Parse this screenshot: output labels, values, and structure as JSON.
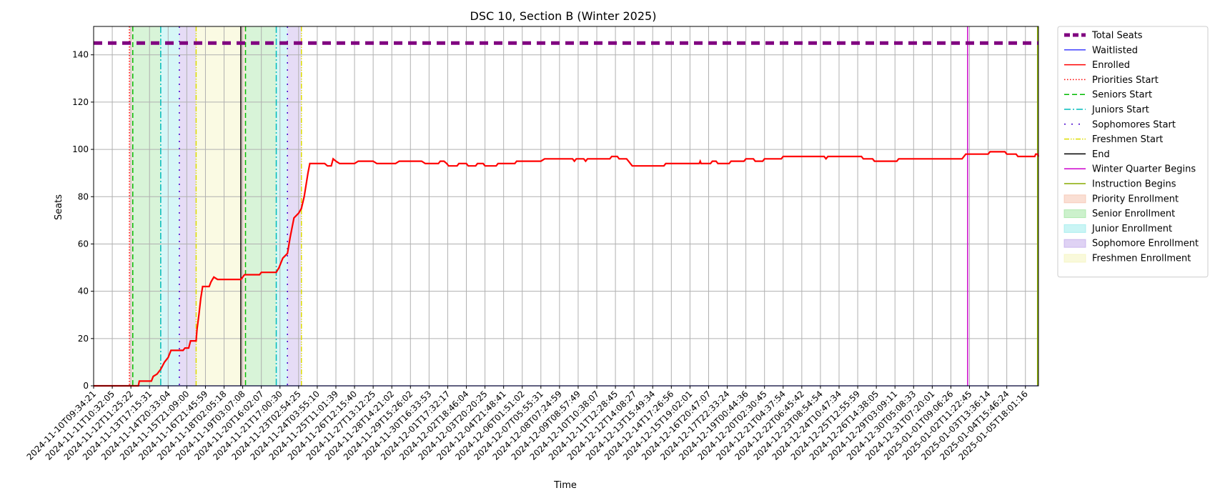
{
  "chart_data": {
    "type": "line",
    "title": "DSC 10, Section B (Winter 2025)",
    "xlabel": "Time",
    "ylabel": "Seats",
    "ylim": [
      0,
      152
    ],
    "yticks": [
      0,
      20,
      40,
      60,
      80,
      100,
      120,
      140
    ],
    "grid": true,
    "legend_position": "outside-right-top",
    "x_tick_labels": [
      "2024-11-10T09:34:21",
      "2024-11-11T10:32:05",
      "2024-11-12T11:25:22",
      "2024-11-13T17:15:31",
      "2024-11-14T20:33:04",
      "2024-11-15T21:09:00",
      "2024-11-16T21:45:59",
      "2024-11-18T02:05:18",
      "2024-11-19T03:07:08",
      "2024-11-20T16:02:07",
      "2024-11-21T17:00:30",
      "2024-11-23T02:54:25",
      "2024-11-24T03:55:10",
      "2024-11-25T11:01:39",
      "2024-11-26T12:15:40",
      "2024-11-27T13:12:25",
      "2024-11-28T14:21:02",
      "2024-11-29T15:26:02",
      "2024-11-30T16:33:53",
      "2024-12-01T17:32:17",
      "2024-12-02T18:46:04",
      "2024-12-03T20:20:25",
      "2024-12-04T21:48:41",
      "2024-12-06T01:51:02",
      "2024-12-07T05:55:31",
      "2024-12-08T07:24:59",
      "2024-12-09T08:57:49",
      "2024-12-10T10:38:07",
      "2024-12-11T12:28:45",
      "2024-12-12T14:08:27",
      "2024-12-13T15:49:34",
      "2024-12-14T17:26:56",
      "2024-12-15T19:02:01",
      "2024-12-16T20:47:07",
      "2024-12-17T22:33:24",
      "2024-12-19T00:44:36",
      "2024-12-20T02:30:45",
      "2024-12-21T04:37:54",
      "2024-12-22T06:45:42",
      "2024-12-23T08:54:54",
      "2024-12-24T10:47:34",
      "2024-12-25T12:55:59",
      "2024-12-26T14:38:05",
      "2024-12-29T03:09:11",
      "2024-12-30T05:08:33",
      "2024-12-31T07:20:01",
      "2025-01-01T09:06:26",
      "2025-01-02T11:22:45",
      "2025-01-03T13:36:14",
      "2025-01-04T15:46:24",
      "2025-01-05T18:01:16"
    ],
    "x_range_ticks": [
      0,
      50.7
    ],
    "series": [
      {
        "name": "Total Seats",
        "color": "#800080",
        "style": "dashed-thick",
        "points": [
          [
            0,
            145
          ],
          [
            50.7,
            145
          ]
        ]
      },
      {
        "name": "Waitlisted",
        "color": "#0000ff",
        "style": "solid-thin",
        "points": [
          [
            0,
            0
          ],
          [
            50.7,
            0
          ]
        ]
      },
      {
        "name": "Enrolled",
        "color": "#ff0000",
        "style": "solid",
        "points": [
          [
            0,
            0
          ],
          [
            2.4,
            0
          ],
          [
            2.45,
            2
          ],
          [
            3.1,
            2
          ],
          [
            3.2,
            4
          ],
          [
            3.4,
            5
          ],
          [
            3.6,
            7
          ],
          [
            3.8,
            10
          ],
          [
            4.0,
            12
          ],
          [
            4.15,
            15
          ],
          [
            4.8,
            15
          ],
          [
            4.9,
            16
          ],
          [
            5.1,
            16
          ],
          [
            5.2,
            19
          ],
          [
            5.5,
            19
          ],
          [
            5.55,
            24
          ],
          [
            5.65,
            30
          ],
          [
            5.75,
            37
          ],
          [
            5.85,
            42
          ],
          [
            6.2,
            42
          ],
          [
            6.3,
            44
          ],
          [
            6.45,
            46
          ],
          [
            6.65,
            45
          ],
          [
            7.9,
            45
          ],
          [
            8.1,
            47
          ],
          [
            8.9,
            47
          ],
          [
            9.0,
            48
          ],
          [
            9.8,
            48
          ],
          [
            9.95,
            50
          ],
          [
            10.15,
            54
          ],
          [
            10.4,
            56
          ],
          [
            10.55,
            63
          ],
          [
            10.75,
            71
          ],
          [
            11.0,
            73
          ],
          [
            11.15,
            75
          ],
          [
            11.3,
            80
          ],
          [
            11.5,
            90
          ],
          [
            11.6,
            94
          ],
          [
            12.4,
            94
          ],
          [
            12.55,
            93
          ],
          [
            12.75,
            93
          ],
          [
            12.85,
            96
          ],
          [
            13.0,
            95
          ],
          [
            13.2,
            94
          ],
          [
            14.0,
            94
          ],
          [
            14.2,
            95
          ],
          [
            15.0,
            95
          ],
          [
            15.2,
            94
          ],
          [
            16.2,
            94
          ],
          [
            16.4,
            95
          ],
          [
            17.6,
            95
          ],
          [
            17.8,
            94
          ],
          [
            18.5,
            94
          ],
          [
            18.6,
            95
          ],
          [
            18.8,
            95
          ],
          [
            18.95,
            94
          ],
          [
            19.05,
            93
          ],
          [
            19.5,
            93
          ],
          [
            19.6,
            94
          ],
          [
            20.0,
            94
          ],
          [
            20.1,
            93
          ],
          [
            20.5,
            93
          ],
          [
            20.6,
            94
          ],
          [
            20.9,
            94
          ],
          [
            21.0,
            93
          ],
          [
            21.6,
            93
          ],
          [
            21.7,
            94
          ],
          [
            22.6,
            94
          ],
          [
            22.7,
            95
          ],
          [
            24.0,
            95
          ],
          [
            24.2,
            96
          ],
          [
            25.7,
            96
          ],
          [
            25.8,
            95
          ],
          [
            25.9,
            96
          ],
          [
            26.3,
            96
          ],
          [
            26.4,
            95
          ],
          [
            26.5,
            96
          ],
          [
            27.7,
            96
          ],
          [
            27.8,
            97
          ],
          [
            28.1,
            97
          ],
          [
            28.2,
            96
          ],
          [
            28.6,
            96
          ],
          [
            28.7,
            95
          ],
          [
            28.9,
            93
          ],
          [
            30.6,
            93
          ],
          [
            30.7,
            94
          ],
          [
            32.5,
            94
          ],
          [
            32.55,
            95
          ],
          [
            32.6,
            94
          ],
          [
            33.1,
            94
          ],
          [
            33.2,
            95
          ],
          [
            33.4,
            95
          ],
          [
            33.5,
            94
          ],
          [
            34.1,
            94
          ],
          [
            34.2,
            95
          ],
          [
            34.9,
            95
          ],
          [
            35.0,
            96
          ],
          [
            35.4,
            96
          ],
          [
            35.5,
            95
          ],
          [
            35.9,
            95
          ],
          [
            36.0,
            96
          ],
          [
            36.9,
            96
          ],
          [
            37.0,
            97
          ],
          [
            39.2,
            97
          ],
          [
            39.3,
            96
          ],
          [
            39.4,
            97
          ],
          [
            41.2,
            97
          ],
          [
            41.3,
            96
          ],
          [
            41.8,
            96
          ],
          [
            41.9,
            95
          ],
          [
            43.1,
            95
          ],
          [
            43.2,
            96
          ],
          [
            46.6,
            96
          ],
          [
            46.8,
            98
          ],
          [
            48.0,
            98
          ],
          [
            48.1,
            99
          ],
          [
            48.9,
            99
          ],
          [
            49.0,
            98
          ],
          [
            49.5,
            98
          ],
          [
            49.6,
            97
          ],
          [
            50.5,
            97
          ],
          [
            50.55,
            98
          ],
          [
            50.65,
            98
          ],
          [
            50.7,
            97
          ]
        ]
      }
    ],
    "vertical_lines": [
      {
        "name": "Priorities Start",
        "color": "#ff0000",
        "style": "dotted",
        "x": 1.92
      },
      {
        "name": "Seniors Start",
        "color": "#00bb00",
        "style": "dashed",
        "x": 2.1
      },
      {
        "name": "Juniors Start",
        "color": "#00bbbb",
        "style": "dashdot",
        "x": 3.6
      },
      {
        "name": "Sophomores Start",
        "color": "#4400cc",
        "style": "loosedot",
        "x": 4.6
      },
      {
        "name": "Freshmen Start",
        "color": "#dddd00",
        "style": "dashdotdot",
        "x": 5.5
      },
      {
        "name": "End",
        "color": "#000000",
        "style": "solid",
        "x": 7.9
      },
      {
        "name": "Seniors Start",
        "color": "#00bb00",
        "style": "dashed",
        "x": 8.15
      },
      {
        "name": "Juniors Start",
        "color": "#00bbbb",
        "style": "dashdot",
        "x": 9.8
      },
      {
        "name": "Sophomores Start",
        "color": "#4400cc",
        "style": "loosedot",
        "x": 10.4
      },
      {
        "name": "Freshmen Start",
        "color": "#dddd00",
        "style": "dashdotdot",
        "x": 11.15
      },
      {
        "name": "Winter Quarter Begins",
        "color": "#cc00cc",
        "style": "solid",
        "x": 46.9
      },
      {
        "name": "Instruction Begins",
        "color": "#88aa00",
        "style": "solid",
        "x": 50.65
      }
    ],
    "shaded_regions": [
      {
        "name": "Priority Enrollment",
        "color": "#f4b8a0",
        "from": 1.92,
        "to": 2.1
      },
      {
        "name": "Senior Enrollment",
        "color": "#8ee08e",
        "from": 2.1,
        "to": 3.6
      },
      {
        "name": "Junior Enrollment",
        "color": "#8ae8e8",
        "from": 3.6,
        "to": 4.6
      },
      {
        "name": "Sophomore Enrollment",
        "color": "#b79be6",
        "from": 4.6,
        "to": 5.5
      },
      {
        "name": "Freshmen Enrollment",
        "color": "#f1f1b0",
        "from": 5.5,
        "to": 7.9
      },
      {
        "name": "Priority Enrollment",
        "color": "#f4b8a0",
        "from": 7.9,
        "to": 8.15
      },
      {
        "name": "Senior Enrollment",
        "color": "#8ee08e",
        "from": 8.15,
        "to": 9.8
      },
      {
        "name": "Junior Enrollment",
        "color": "#8ae8e8",
        "from": 9.8,
        "to": 10.4
      },
      {
        "name": "Sophomore Enrollment",
        "color": "#b79be6",
        "from": 10.4,
        "to": 11.15
      }
    ],
    "legend": [
      {
        "label": "Total Seats",
        "kind": "line",
        "color": "#800080",
        "style": "dashed-thick"
      },
      {
        "label": "Waitlisted",
        "kind": "line",
        "color": "#0000ff",
        "style": "solid-thin"
      },
      {
        "label": "Enrolled",
        "kind": "line",
        "color": "#ff0000",
        "style": "solid"
      },
      {
        "label": "Priorities Start",
        "kind": "line",
        "color": "#ff0000",
        "style": "dotted"
      },
      {
        "label": "Seniors Start",
        "kind": "line",
        "color": "#00bb00",
        "style": "dashed"
      },
      {
        "label": "Juniors Start",
        "kind": "line",
        "color": "#00bbbb",
        "style": "dashdot"
      },
      {
        "label": "Sophomores Start",
        "kind": "line",
        "color": "#4400cc",
        "style": "loosedot"
      },
      {
        "label": "Freshmen Start",
        "kind": "line",
        "color": "#dddd00",
        "style": "dashdotdot"
      },
      {
        "label": "End",
        "kind": "line",
        "color": "#000000",
        "style": "solid"
      },
      {
        "label": "Winter Quarter Begins",
        "kind": "line",
        "color": "#cc00cc",
        "style": "solid"
      },
      {
        "label": "Instruction Begins",
        "kind": "line",
        "color": "#88aa00",
        "style": "solid"
      },
      {
        "label": "Priority Enrollment",
        "kind": "patch",
        "color": "#f4b8a0"
      },
      {
        "label": "Senior Enrollment",
        "kind": "patch",
        "color": "#8ee08e"
      },
      {
        "label": "Junior Enrollment",
        "kind": "patch",
        "color": "#8ae8e8"
      },
      {
        "label": "Sophomore Enrollment",
        "kind": "patch",
        "color": "#b79be6"
      },
      {
        "label": "Freshmen Enrollment",
        "kind": "patch",
        "color": "#f1f1b0"
      }
    ]
  }
}
